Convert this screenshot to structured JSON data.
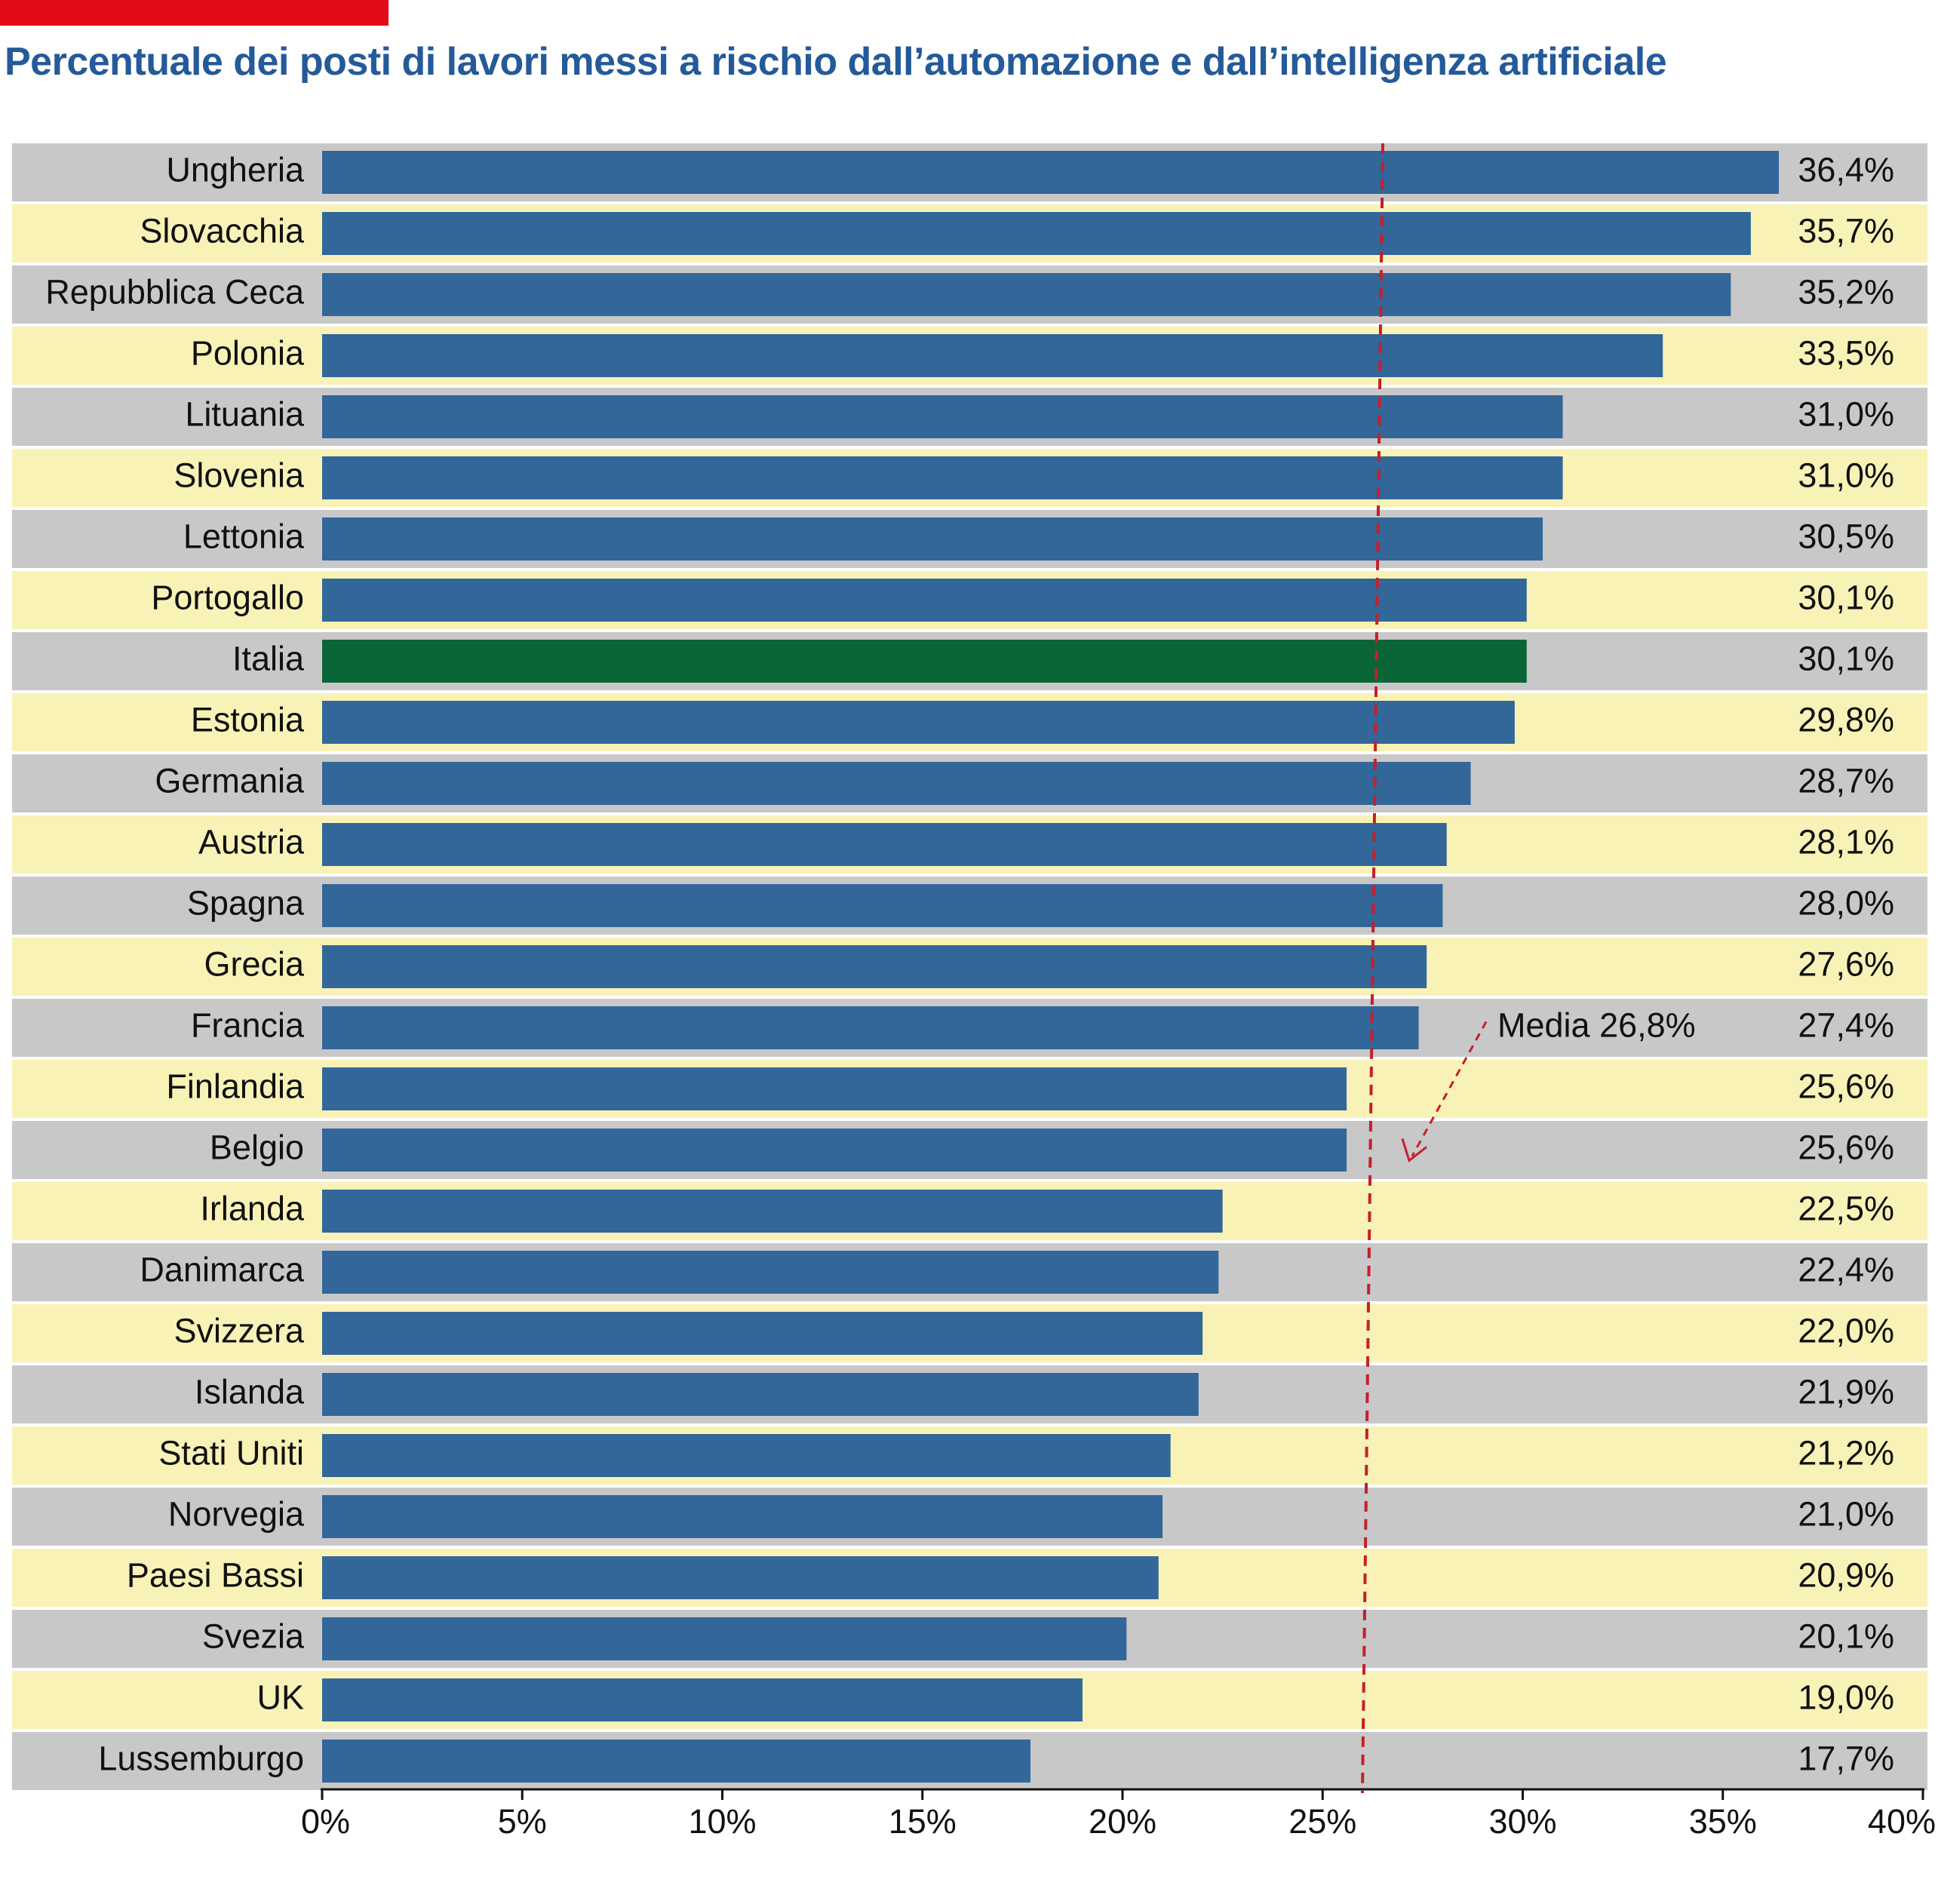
{
  "header": {
    "title": "Percentuale dei posti di lavori messi a rischio dall’automazione e dall’intelligenza artificiale"
  },
  "colors": {
    "accent_bar": "#e30b17",
    "title": "#245a99",
    "bar": "#336699",
    "bar_highlight": "#0a6636",
    "row_gray": "#c8c8c8",
    "row_yellow": "#f8f2b6",
    "mean_line": "#c4202b"
  },
  "chart_data": {
    "type": "bar",
    "orientation": "horizontal",
    "categories": [
      "Ungheria",
      "Slovacchia",
      "Repubblica Ceca",
      "Polonia",
      "Lituania",
      "Slovenia",
      "Lettonia",
      "Portogallo",
      "Italia",
      "Estonia",
      "Germania",
      "Austria",
      "Spagna",
      "Grecia",
      "Francia",
      "Finlandia",
      "Belgio",
      "Irlanda",
      "Danimarca",
      "Svizzera",
      "Islanda",
      "Stati Uniti",
      "Norvegia",
      "Paesi Bassi",
      "Svezia",
      "UK",
      "Lussemburgo"
    ],
    "values": [
      36.4,
      35.7,
      35.2,
      33.5,
      31.0,
      31.0,
      30.5,
      30.1,
      30.1,
      29.8,
      28.7,
      28.1,
      28.0,
      27.6,
      27.4,
      25.6,
      25.6,
      22.5,
      22.4,
      22.0,
      21.9,
      21.2,
      21.0,
      20.9,
      20.1,
      19.0,
      17.7
    ],
    "value_labels": [
      "36,4%",
      "35,7%",
      "35,2%",
      "33,5%",
      "31,0%",
      "31,0%",
      "30,5%",
      "30,1%",
      "30,1%",
      "29,8%",
      "28,7%",
      "28,1%",
      "28,0%",
      "27,6%",
      "27,4%",
      "25,6%",
      "25,6%",
      "22,5%",
      "22,4%",
      "22,0%",
      "21,9%",
      "21,2%",
      "21,0%",
      "20,9%",
      "20,1%",
      "19,0%",
      "17,7%"
    ],
    "highlight": "Italia",
    "xlim": [
      0,
      40
    ],
    "xticks": [
      0,
      5,
      10,
      15,
      20,
      25,
      30,
      35,
      40
    ],
    "xtick_labels": [
      "0%",
      "5%",
      "10%",
      "15%",
      "20%",
      "25%",
      "30%",
      "35%",
      "40%"
    ],
    "mean": 26.8,
    "annotation": "Media 26,8%",
    "title": "Percentuale dei posti di lavori messi a rischio dall’automazione e dall’intelligenza artificiale",
    "xlabel": "",
    "ylabel": "",
    "grid": false,
    "legend": "none"
  }
}
